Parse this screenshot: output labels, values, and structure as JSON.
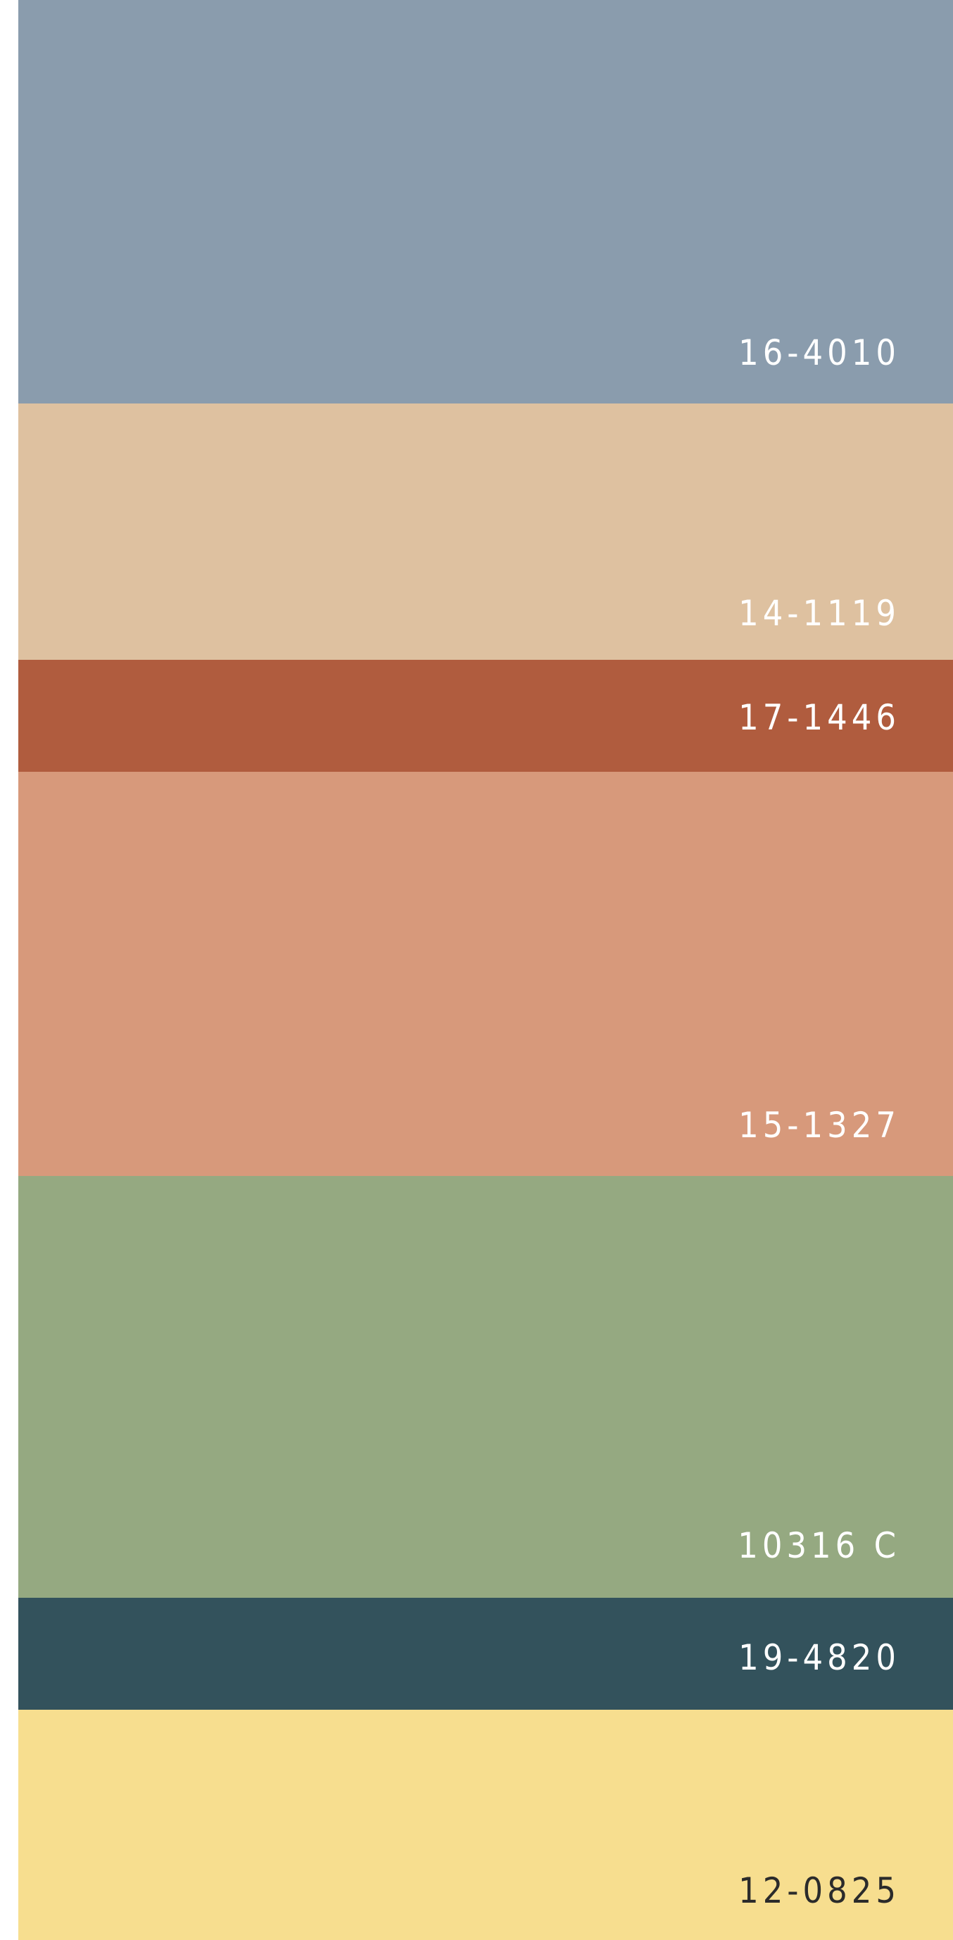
{
  "swatches": [
    {
      "code": "16-4010",
      "color": "#8a9cad",
      "text_color": "#ffffff"
    },
    {
      "code": "14-1119",
      "color": "#dec1a0",
      "text_color": "#ffffff"
    },
    {
      "code": "17-1446",
      "color": "#b05c3e",
      "text_color": "#ffffff"
    },
    {
      "code": "15-1327",
      "color": "#d7997b",
      "text_color": "#ffffff"
    },
    {
      "code": "10316 C",
      "color": "#95a981",
      "text_color": "#ffffff"
    },
    {
      "code": "19-4820",
      "color": "#33525c",
      "text_color": "#ffffff"
    },
    {
      "code": "12-0825",
      "color": "#f7de8f",
      "text_color": "#2b2b2b"
    }
  ]
}
